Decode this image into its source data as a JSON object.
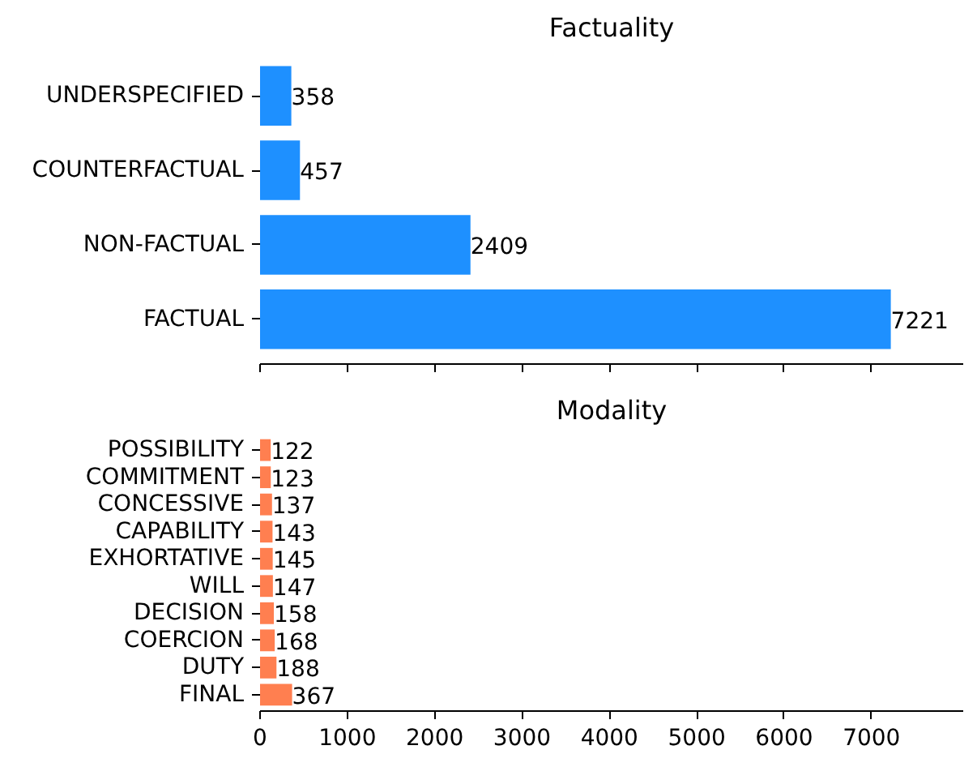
{
  "chart_data": [
    {
      "type": "bar",
      "orientation": "horizontal",
      "title": "Factuality",
      "categories": [
        "UNDERSPECIFIED",
        "COUNTERFACTUAL",
        "NON-FACTUAL",
        "FACTUAL"
      ],
      "values": [
        358,
        457,
        2409,
        7221
      ],
      "color": "#1e90ff",
      "xlim": [
        0,
        8050
      ],
      "xticks": [
        0,
        1000,
        2000,
        3000,
        4000,
        5000,
        6000,
        7000
      ],
      "tick_labels": "y",
      "data_labels": true,
      "grid": false,
      "legend": false
    },
    {
      "type": "bar",
      "orientation": "horizontal",
      "title": "Modality",
      "categories": [
        "POSSIBILITY",
        "COMMITMENT",
        "CONCESSIVE",
        "CAPABILITY",
        "EXHORTATIVE",
        "WILL",
        "DECISION",
        "COERCION",
        "DUTY",
        "FINAL"
      ],
      "values": [
        122,
        123,
        137,
        143,
        145,
        147,
        158,
        168,
        188,
        367
      ],
      "color": "#ff7f50",
      "xlim": [
        0,
        8050
      ],
      "xticks": [
        0,
        1000,
        2000,
        3000,
        4000,
        5000,
        6000,
        7000
      ],
      "data_labels": true,
      "grid": false,
      "legend": false
    }
  ]
}
